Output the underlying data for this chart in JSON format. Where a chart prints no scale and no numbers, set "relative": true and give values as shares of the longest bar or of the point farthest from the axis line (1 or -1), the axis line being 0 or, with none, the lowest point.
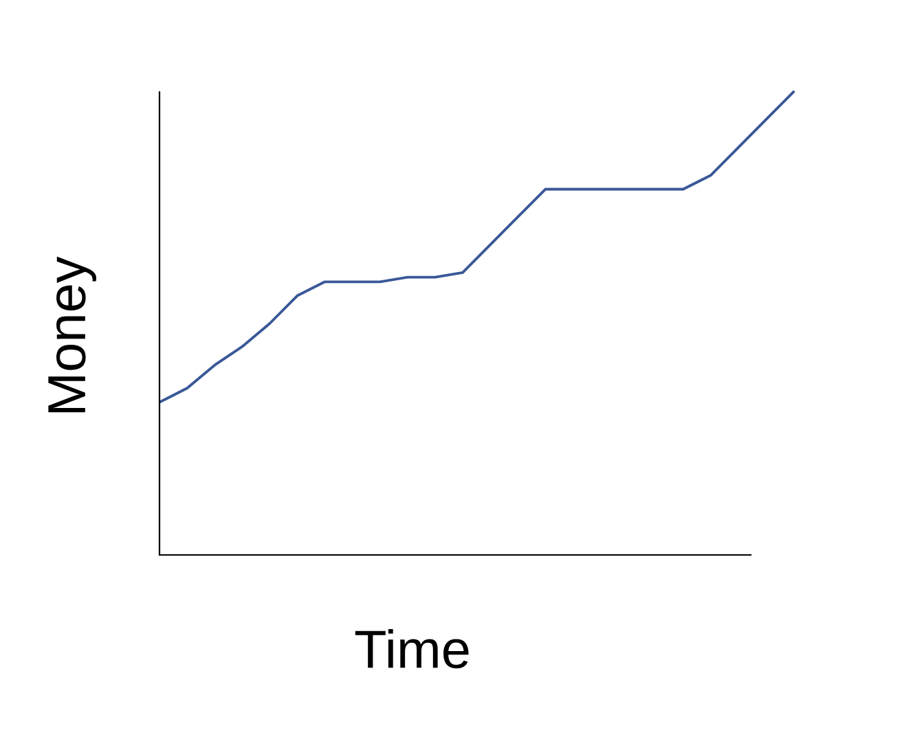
{
  "chart_data": {
    "type": "line",
    "relative": true,
    "xlabel": "Time",
    "ylabel": "Money",
    "categories": [
      null,
      null,
      null,
      null,
      null,
      null,
      null,
      null,
      null,
      null,
      null,
      null,
      null,
      null,
      null,
      null,
      null,
      null,
      null,
      null,
      null,
      null,
      null,
      null
    ],
    "series": [
      {
        "color": "#3a5898",
        "values": [
          0.33,
          0.36,
          0.41,
          0.45,
          0.5,
          0.56,
          0.59,
          0.59,
          0.59,
          0.6,
          0.6,
          0.61,
          0.67,
          0.73,
          0.79,
          0.79,
          0.79,
          0.79,
          0.79,
          0.79,
          0.82,
          0.88,
          0.94,
          1.0
        ]
      }
    ],
    "marker": "none",
    "line_style": "solid"
  }
}
